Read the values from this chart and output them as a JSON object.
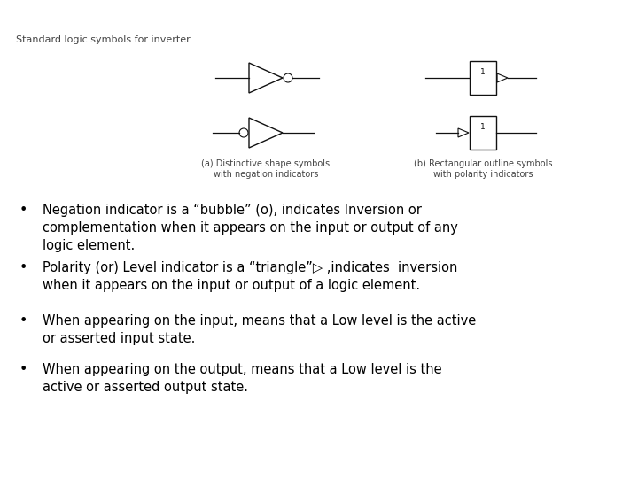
{
  "background_color": "#ffffff",
  "title_text": "Standard logic symbols for inverter",
  "title_fontsize": 8.0,
  "caption_a": "(a) Distinctive shape symbols\nwith negation indicators",
  "caption_b": "(b) Rectangular outline symbols\nwith polarity indicators",
  "caption_fontsize": 7.0,
  "bullets": [
    "Negation indicator is a “bubble” (o), indicates Inversion or\ncomplementation when it appears on the input or output of any\nlogic element.",
    "Polarity (or) Level indicator is a “triangle”▷ ,indicates  inversion\nwhen it appears on the input or output of a logic element.",
    "When appearing on the input, means that a Low level is the active\nor asserted input state.",
    "When appearing on the output, means that a Low level is the\nactive or asserted output state."
  ],
  "bullet_fontsize": 10.5,
  "diagram_color": "#111111"
}
